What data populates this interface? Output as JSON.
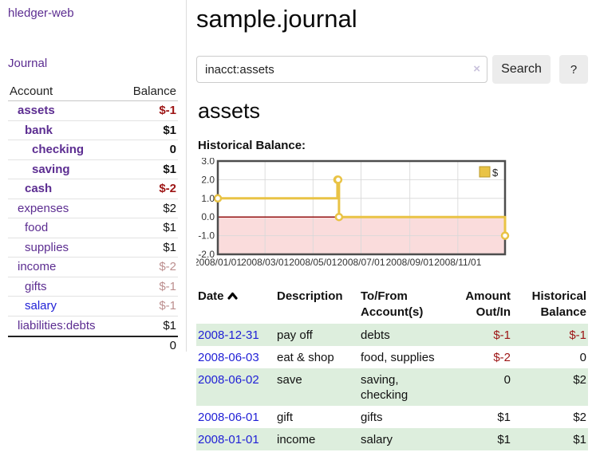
{
  "app": {
    "brand": "hledger-web"
  },
  "sidebar": {
    "nav": [
      {
        "label": "Journal"
      }
    ],
    "accounts_table": {
      "headers": {
        "account": "Account",
        "balance": "Balance"
      },
      "rows": [
        {
          "name": "assets",
          "depth": 0,
          "bold": true,
          "name_color": "purple",
          "balance": "$-1",
          "balance_tone": "negative"
        },
        {
          "name": "bank",
          "depth": 1,
          "bold": true,
          "name_color": "purple",
          "balance": "$1",
          "balance_tone": "normal"
        },
        {
          "name": "checking",
          "depth": 2,
          "bold": true,
          "name_color": "purple",
          "balance": "0",
          "balance_tone": "normal"
        },
        {
          "name": "saving",
          "depth": 2,
          "bold": true,
          "name_color": "purple",
          "balance": "$1",
          "balance_tone": "normal"
        },
        {
          "name": "cash",
          "depth": 1,
          "bold": true,
          "name_color": "purple",
          "balance": "$-2",
          "balance_tone": "negative"
        },
        {
          "name": "expenses",
          "depth": 0,
          "bold": false,
          "name_color": "purple",
          "balance": "$2",
          "balance_tone": "normal"
        },
        {
          "name": "food",
          "depth": 1,
          "bold": false,
          "name_color": "purple",
          "balance": "$1",
          "balance_tone": "normal"
        },
        {
          "name": "supplies",
          "depth": 1,
          "bold": false,
          "name_color": "purple",
          "balance": "$1",
          "balance_tone": "normal"
        },
        {
          "name": "income",
          "depth": 0,
          "bold": false,
          "name_color": "purple",
          "balance": "$-2",
          "balance_tone": "negative-soft"
        },
        {
          "name": "gifts",
          "depth": 1,
          "bold": false,
          "name_color": "purple",
          "balance": "$-1",
          "balance_tone": "negative-soft"
        },
        {
          "name": "salary",
          "depth": 1,
          "bold": false,
          "name_color": "blue",
          "balance": "$-1",
          "balance_tone": "negative-soft"
        },
        {
          "name": "liabilities:debts",
          "depth": 0,
          "bold": false,
          "name_color": "purple",
          "balance": "$1",
          "balance_tone": "normal"
        }
      ],
      "total": "0"
    }
  },
  "header": {
    "title": "sample.journal"
  },
  "search": {
    "query": "inacct:assets",
    "clear_icon": "×",
    "button_label": "Search",
    "help_label": "?"
  },
  "account_page": {
    "heading": "assets",
    "chart_label": "Historical Balance:"
  },
  "chart_data": {
    "type": "line",
    "step": true,
    "title": "Historical Balance:",
    "x_range": [
      "2008-01-01",
      "2008-12-31"
    ],
    "x_ticks": [
      "2008/01/01",
      "2008/03/01",
      "2008/05/01",
      "2008/07/01",
      "2008/09/01",
      "2008/11/01"
    ],
    "y_ticks": [
      3.0,
      2.0,
      1.0,
      0.0,
      -1.0,
      -2.0
    ],
    "ylim": [
      -2,
      3
    ],
    "series": [
      {
        "name": "$",
        "color": "#e9c345",
        "points": [
          [
            "2008-01-01",
            1
          ],
          [
            "2008-06-01",
            2
          ],
          [
            "2008-06-02",
            2
          ],
          [
            "2008-06-03",
            0
          ],
          [
            "2008-12-31",
            -1
          ]
        ]
      }
    ],
    "legend": {
      "label": "$",
      "position": "top-right"
    },
    "grid": true,
    "negative_region_color": "#fadcdc",
    "zero_line_color": "#8b0000",
    "border_color": "#4d4d4d"
  },
  "register_table": {
    "headers": {
      "date": "Date",
      "description": "Description",
      "accounts": "To/From Account(s)",
      "amount": "Amount Out/In",
      "balance": "Historical Balance"
    },
    "sort_icon": "chevron-up",
    "rows": [
      {
        "date": "2008-12-31",
        "description": "pay off",
        "accounts": "debts",
        "amount": "$-1",
        "amount_negative": true,
        "balance": "$-1",
        "balance_negative": true
      },
      {
        "date": "2008-06-03",
        "description": "eat & shop",
        "accounts": "food, supplies",
        "amount": "$-2",
        "amount_negative": true,
        "balance": "0",
        "balance_negative": false
      },
      {
        "date": "2008-06-02",
        "description": "save",
        "accounts": "saving, checking",
        "amount": "0",
        "amount_negative": false,
        "balance": "$2",
        "balance_negative": false
      },
      {
        "date": "2008-06-01",
        "description": "gift",
        "accounts": "gifts",
        "amount": "$1",
        "amount_negative": false,
        "balance": "$2",
        "balance_negative": false
      },
      {
        "date": "2008-01-01",
        "description": "income",
        "accounts": "salary",
        "amount": "$1",
        "amount_negative": false,
        "balance": "$1",
        "balance_negative": false
      }
    ]
  },
  "colors": {
    "link_purple": "#5c2d91",
    "link_blue": "#1f1fd6",
    "negative_strong": "#9d1515",
    "negative_soft": "#bc8f8f",
    "row_green": "#ddeedd",
    "series_gold": "#e9c345",
    "negative_region_pink": "#fadcdc",
    "zero_line_red": "#8b0000"
  }
}
